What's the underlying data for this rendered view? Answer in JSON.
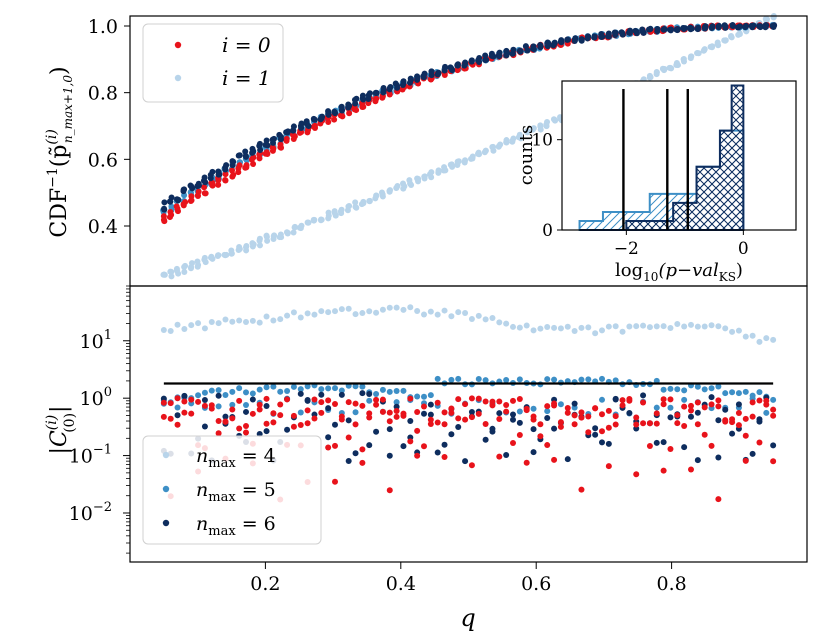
{
  "chart_data": [
    {
      "type": "scatter",
      "panel": "top",
      "ylabel": "CDF⁻¹(p̃⁽ⁱ⁾ n_max+1,0)",
      "ylabel_main": "CDF",
      "ylabel_sup": "−1",
      "ylabel_p": "(p̃",
      "ylabel_psup": "(i)",
      "ylabel_psub": "n_max+1,0",
      "ylabel_close": ")",
      "xlim": [
        0,
        1
      ],
      "ylim": [
        0.22,
        1.03
      ],
      "yticks": [
        0.4,
        0.6,
        0.8,
        1.0
      ],
      "ytick_labels": [
        "0.4",
        "0.6",
        "0.8",
        "1.0"
      ],
      "legend_position": "top-left",
      "legend": [
        {
          "label": "i = 0",
          "color": "#e8131b"
        },
        {
          "label": "i = 1",
          "color": "#b8d4ea"
        }
      ],
      "series": [
        {
          "name": "i=1 (n_max=4)",
          "color": "#b8d4ea",
          "x_range": [
            0.05,
            0.95
          ],
          "y_start": 0.25,
          "y_end": 0.99,
          "curve": "linear-ish",
          "points": 90
        },
        {
          "name": "i=0 (n_max=5)",
          "color": "#3d8fc6",
          "x_range": [
            0.05,
            0.95
          ],
          "y_start": 0.44,
          "y_end": 1.0,
          "curve": "concave",
          "points": 90
        },
        {
          "name": "i=0 (n_max=4)",
          "color": "#e8131b",
          "x_range": [
            0.05,
            0.95
          ],
          "y_start": 0.42,
          "y_end": 1.0,
          "curve": "concave",
          "points": 90
        },
        {
          "name": "i=0 (n_max=6)",
          "color": "#0e2d5e",
          "x_range": [
            0.05,
            0.95
          ],
          "y_start": 0.46,
          "y_end": 1.0,
          "curve": "concave",
          "points": 90
        }
      ]
    },
    {
      "type": "bar",
      "panel": "inset-histogram",
      "xlabel": "log₁₀(p−val_KS)",
      "xlabel_main": "log",
      "xlabel_sub10": "10",
      "xlabel_paren": "(p−val",
      "xlabel_subks": "KS",
      "xlabel_close": ")",
      "ylabel": "counts",
      "xlim": [
        -3.1,
        0.9
      ],
      "ylim": [
        0,
        16.5
      ],
      "xticks": [
        -2,
        0
      ],
      "xtick_labels": [
        "−2",
        "0"
      ],
      "yticks": [
        0,
        10
      ],
      "ytick_labels": [
        "0",
        "10"
      ],
      "bin_edges": [
        -2.8,
        -2.4,
        -2.0,
        -1.6,
        -1.2,
        -0.8,
        -0.4,
        -0.2,
        0.0
      ],
      "series": [
        {
          "name": "light-blue hatched",
          "color": "#3d8fc6",
          "hatch": "diagonal",
          "values": [
            1,
            2,
            2,
            4,
            4,
            7,
            11,
            11
          ]
        },
        {
          "name": "dark-blue crosshatched",
          "color": "#0e2d5e",
          "hatch": "cross",
          "values": [
            0,
            0,
            1,
            1,
            3,
            7,
            11,
            16
          ]
        }
      ],
      "vertical_lines": [
        -2.05,
        -1.3,
        -0.95
      ]
    },
    {
      "type": "scatter",
      "panel": "bottom",
      "xlabel": "q",
      "ylabel": "|C⁽ⁱ⁾₍₀₎|",
      "ylabel_sup": "(i)",
      "ylabel_sub": "(0)",
      "yscale": "log",
      "xlim": [
        0,
        1
      ],
      "ylim": [
        0.0014,
        90
      ],
      "xticks": [
        0.2,
        0.4,
        0.6,
        0.8
      ],
      "xtick_labels": [
        "0.2",
        "0.4",
        "0.6",
        "0.8"
      ],
      "yticks": [
        0.01,
        0.1,
        1,
        10
      ],
      "ytick_labels": [
        "10⁻²",
        "10⁻¹",
        "10⁰",
        "10¹"
      ],
      "ytick_base": "10",
      "ytick_exps": [
        "−2",
        "−1",
        "0",
        "1"
      ],
      "legend_position": "bottom-left",
      "legend": [
        {
          "label": "n_max = 4",
          "color": "#b8d4ea",
          "main": "n",
          "sub": "max",
          "rest": " = 4"
        },
        {
          "label": "n_max = 5",
          "color": "#3d8fc6",
          "main": "n",
          "sub": "max",
          "rest": " = 5"
        },
        {
          "label": "n_max = 6",
          "color": "#0e2d5e",
          "main": "n",
          "sub": "max",
          "rest": " = 6"
        }
      ],
      "hline": {
        "y": 1.8,
        "x_range": [
          0.05,
          0.95
        ],
        "color": "#000000"
      },
      "series": [
        {
          "name": "light-blue",
          "color": "#b8d4ea",
          "x_range": [
            0.05,
            0.95
          ],
          "typical_range": [
            8,
            50
          ]
        },
        {
          "name": "mid-blue",
          "color": "#3d8fc6",
          "x_range": [
            0.05,
            0.95
          ],
          "typical_range": [
            0.4,
            2.0
          ]
        },
        {
          "name": "dark-blue",
          "color": "#0e2d5e",
          "x_range": [
            0.05,
            0.95
          ],
          "typical_range": [
            0.05,
            1.5
          ]
        },
        {
          "name": "red",
          "color": "#e8131b",
          "x_range": [
            0.05,
            0.95
          ],
          "typical_range": [
            0.01,
            1.0
          ]
        }
      ]
    }
  ]
}
